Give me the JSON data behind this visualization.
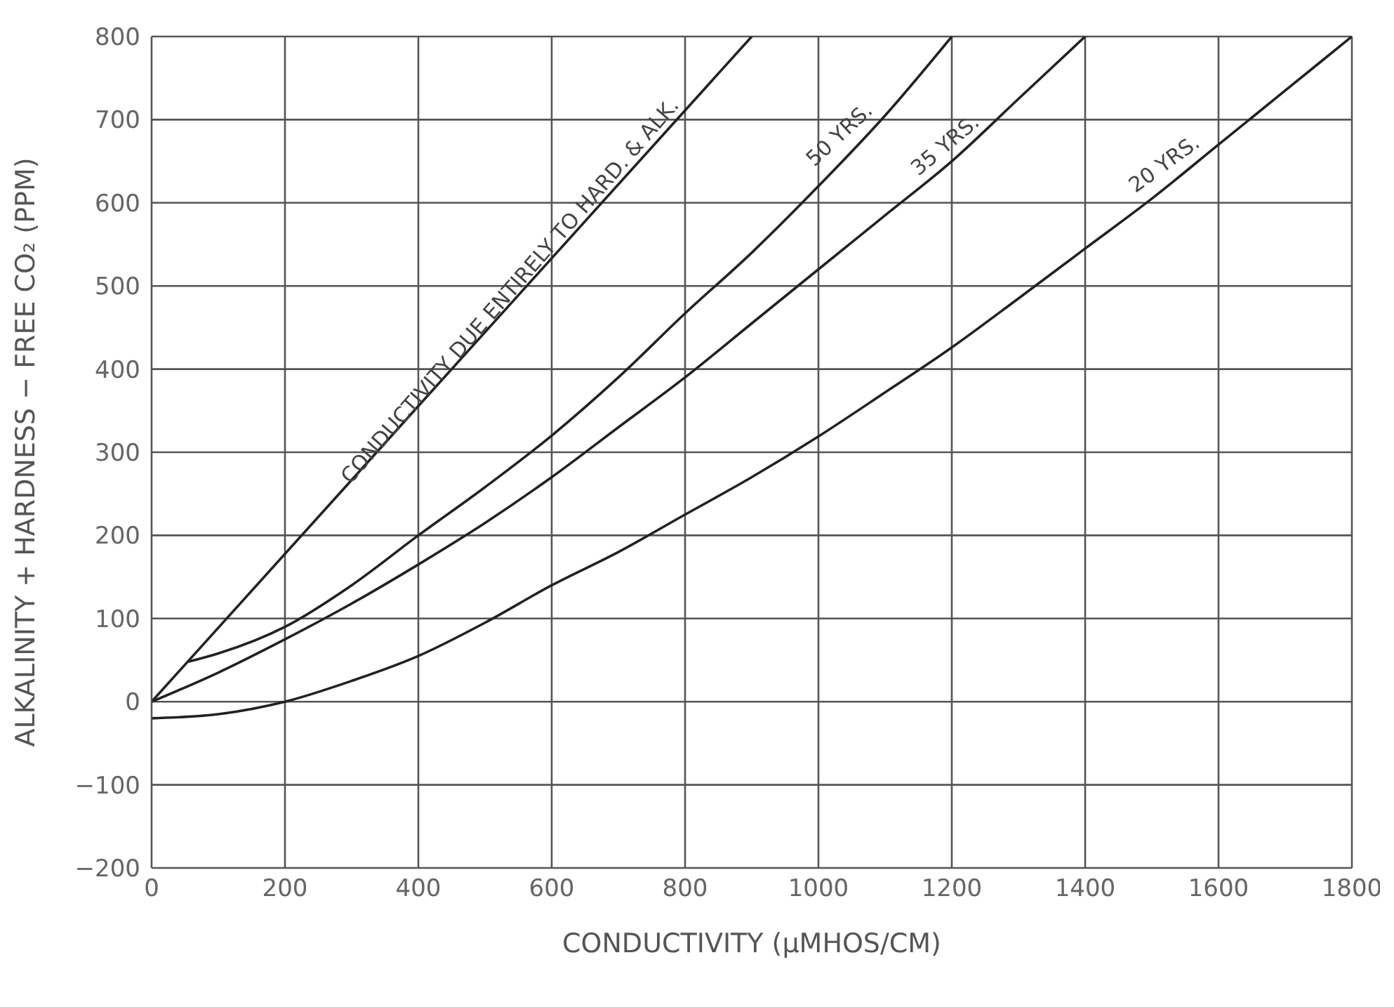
{
  "chart_data": {
    "type": "line",
    "xlabel": "CONDUCTIVITY (μMHOS/CM)",
    "ylabel": "ALKALINITY + HARDNESS − FREE CO₂ (PPM)",
    "xlim": [
      0,
      1800
    ],
    "xticks": [
      0,
      200,
      400,
      600,
      800,
      1000,
      1200,
      1400,
      1600,
      1800
    ],
    "ylim": [
      -200,
      800
    ],
    "yticks": [
      -200,
      -100,
      0,
      100,
      200,
      300,
      400,
      500,
      600,
      700,
      800
    ],
    "grid": true,
    "marker": "none",
    "line_style": "solid",
    "series": [
      {
        "color": "#222222",
        "x": [
          0,
          900
        ],
        "values": [
          0,
          800
        ]
      },
      {
        "color": "#222222",
        "x": [
          55,
          100,
          200,
          300,
          400,
          500,
          600,
          700,
          800,
          900,
          1000,
          1100,
          1200
        ],
        "values": [
          48,
          58,
          90,
          140,
          200,
          258,
          320,
          390,
          467,
          540,
          620,
          705,
          800
        ]
      },
      {
        "color": "#222222",
        "x": [
          0,
          100,
          200,
          300,
          400,
          500,
          600,
          700,
          800,
          900,
          1000,
          1100,
          1200,
          1300,
          1400
        ],
        "values": [
          0,
          35,
          75,
          118,
          165,
          215,
          270,
          330,
          390,
          455,
          520,
          585,
          650,
          725,
          800
        ]
      },
      {
        "color": "#222222",
        "x": [
          0,
          100,
          200,
          300,
          400,
          500,
          600,
          700,
          800,
          900,
          1000,
          1100,
          1200,
          1300,
          1400,
          1500,
          1600,
          1700,
          1800
        ],
        "values": [
          -20,
          -15,
          0,
          25,
          55,
          95,
          140,
          180,
          225,
          270,
          319,
          372,
          426,
          485,
          545,
          605,
          670,
          735,
          800
        ]
      }
    ],
    "annotations": [
      {
        "text": "CONDUCTIVITY DUE ENTIRELY TO HARD. & ALK.",
        "x": 800,
        "y": 711
      },
      {
        "text": "50 YRS.",
        "x": 1090,
        "y": 703
      },
      {
        "text": "35 YRS.",
        "x": 1250,
        "y": 688
      },
      {
        "text": "20 YRS.",
        "x": 1580,
        "y": 662
      }
    ]
  }
}
